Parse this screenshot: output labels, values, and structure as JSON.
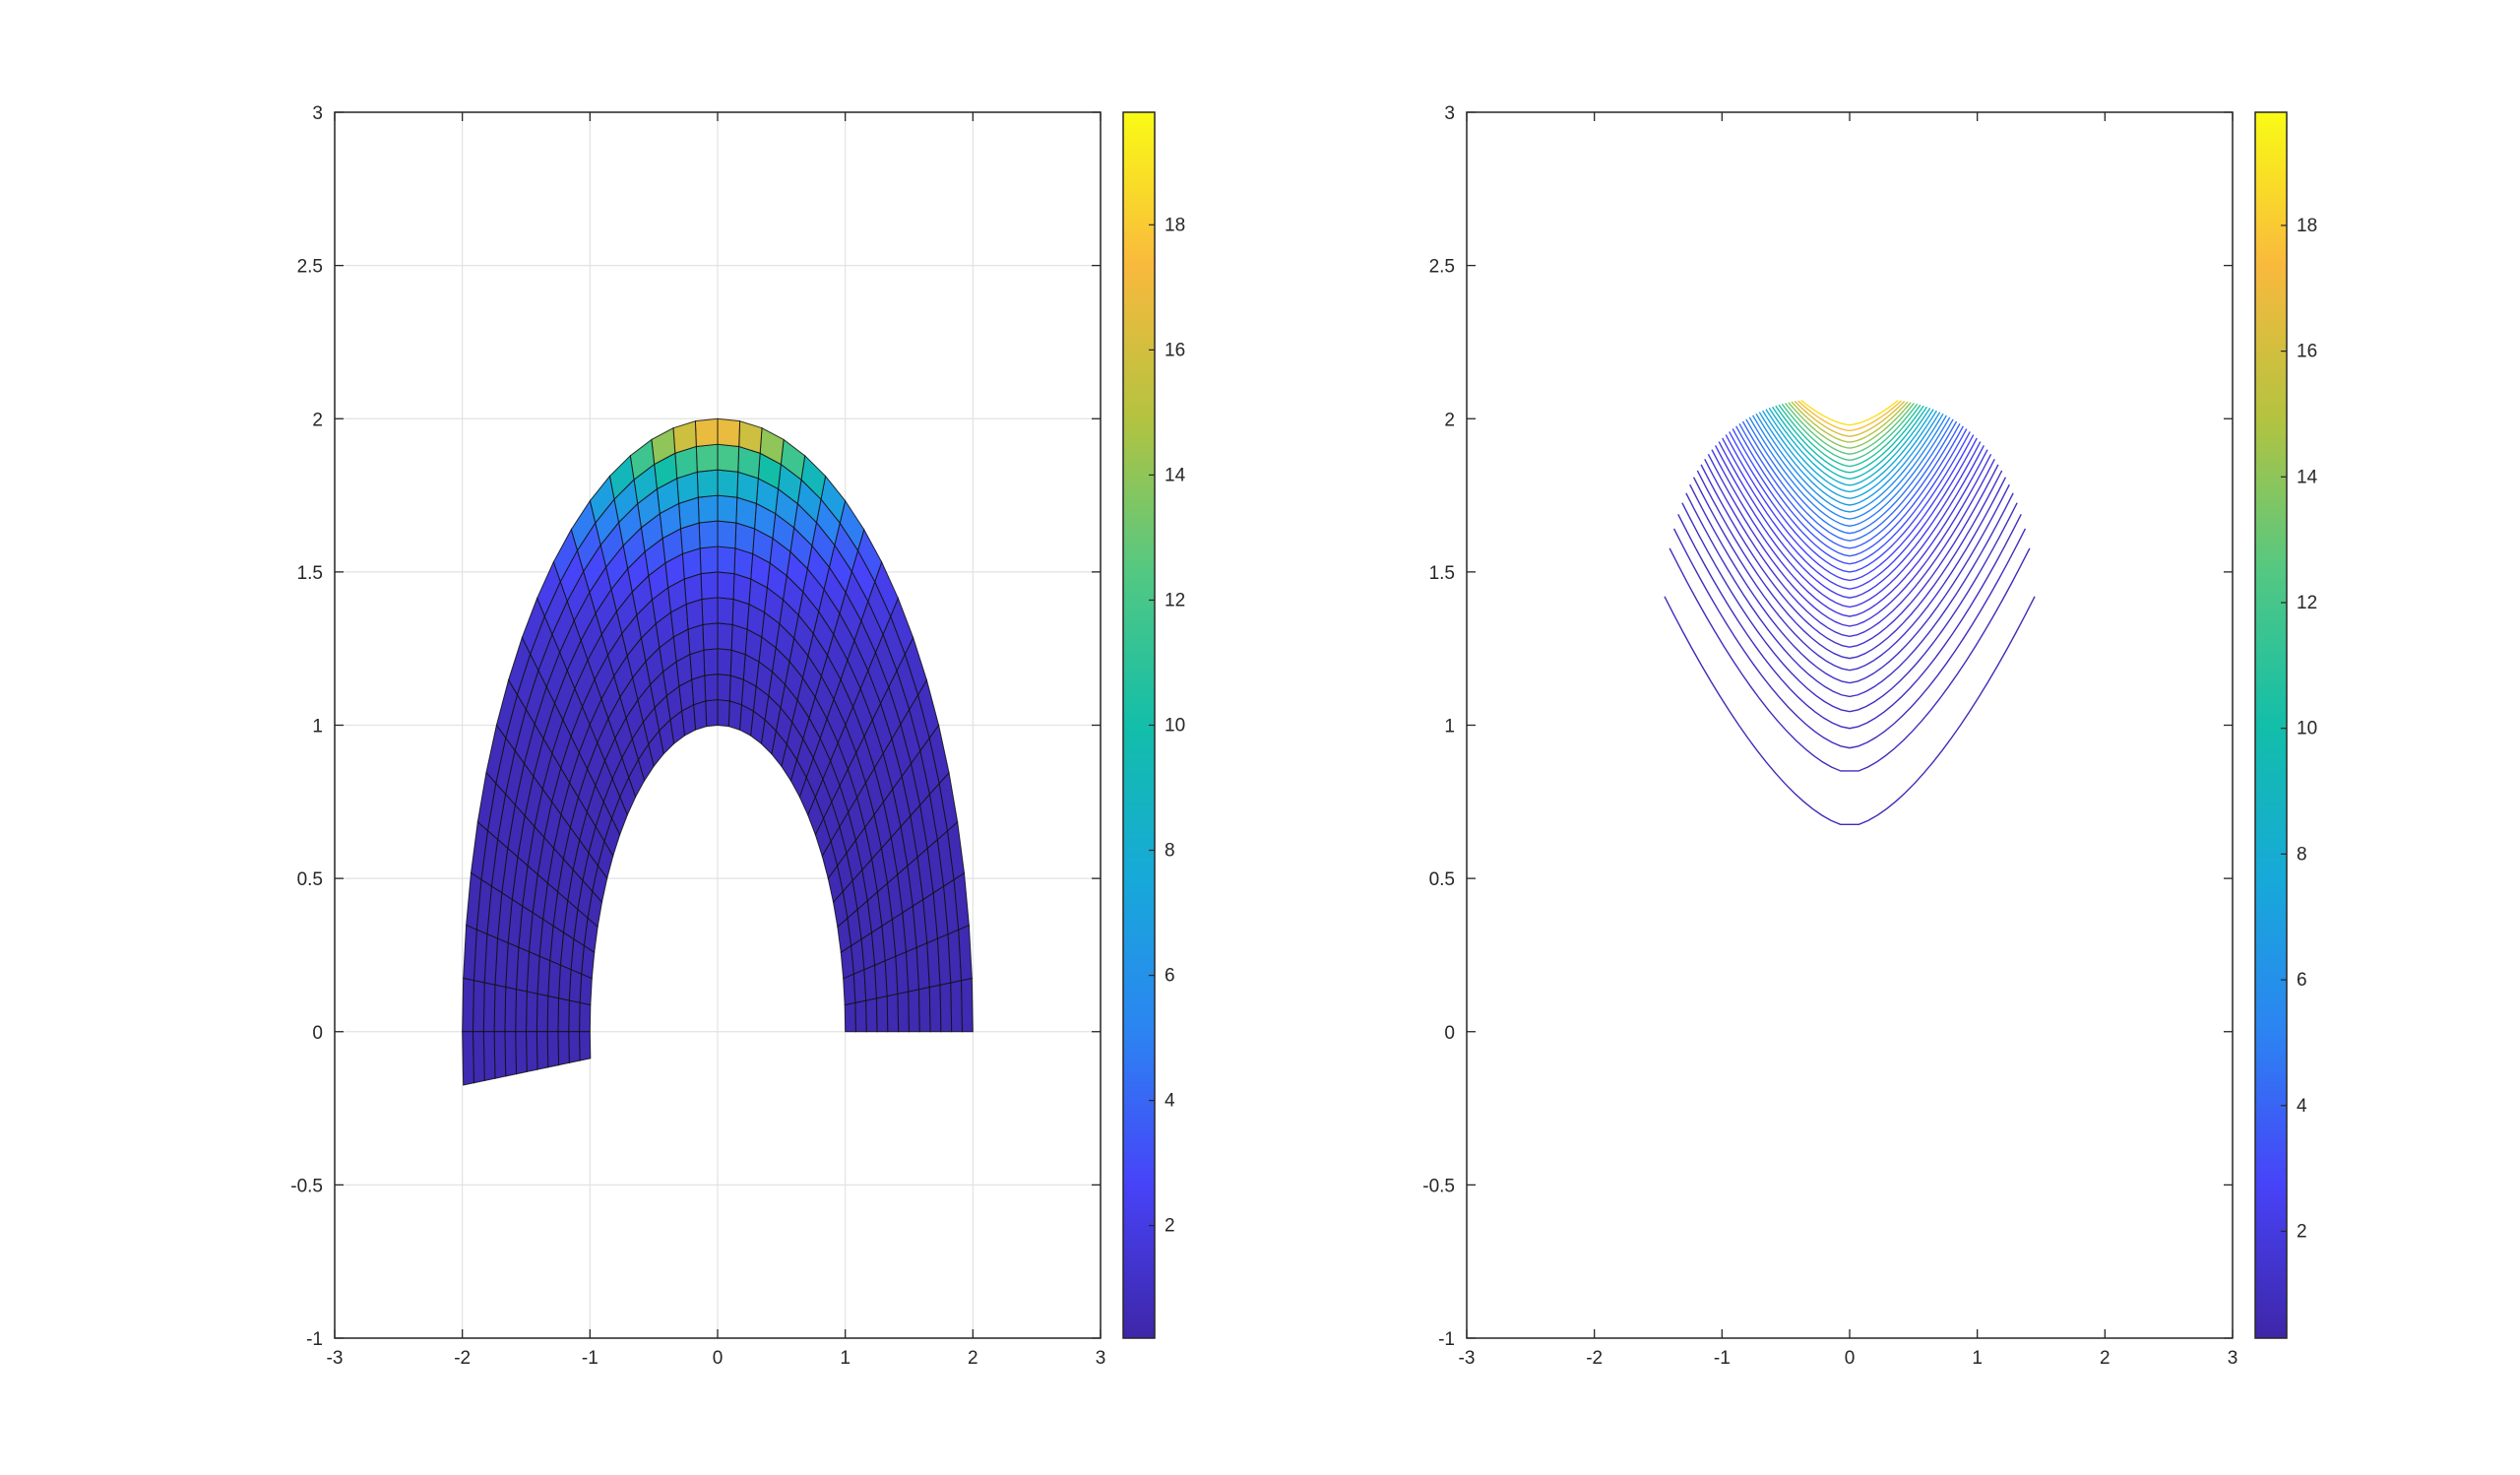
{
  "chart_data": [
    {
      "type": "heatmap",
      "plot": "surface-mesh",
      "title": "",
      "xlabel": "",
      "ylabel": "",
      "xlim": [
        -3,
        3
      ],
      "ylim": [
        -1,
        3
      ],
      "grid": true,
      "xticks": [
        "-3",
        "-2",
        "-1",
        "0",
        "1",
        "2",
        "3"
      ],
      "yticks": [
        "-1",
        "-0.5",
        "0",
        "0.5",
        "1",
        "1.5",
        "2",
        "2.5",
        "3"
      ],
      "domain": {
        "shape": "half-annulus",
        "inner_radius_x": 1,
        "outer_radius_x": 2,
        "inner_radius_y": 1,
        "outer_radius_y": 2,
        "theta_start_deg": 0,
        "theta_end_deg": 185,
        "angular_divisions": 37,
        "radial_divisions": 12
      },
      "color_range": [
        0.2,
        19.8
      ],
      "colorbar": {
        "location": "right",
        "ticks": [
          "2",
          "4",
          "6",
          "8",
          "10",
          "12",
          "14",
          "16",
          "18"
        ]
      }
    },
    {
      "type": "line",
      "plot": "contour",
      "title": "",
      "xlabel": "",
      "ylabel": "",
      "xlim": [
        -3,
        3
      ],
      "ylim": [
        -1,
        3
      ],
      "grid": false,
      "xticks": [
        "-3",
        "-2",
        "-1",
        "0",
        "1",
        "2",
        "3"
      ],
      "yticks": [
        "-1",
        "-0.5",
        "0",
        "0.5",
        "1",
        "1.5",
        "2",
        "2.5",
        "3"
      ],
      "levels": {
        "count": 40,
        "y_apex_min": 0.67,
        "y_apex_max": 1.98,
        "x_half_width_max": 1.45
      },
      "color_range": [
        0.3,
        19.8
      ],
      "colorbar": {
        "location": "right",
        "ticks": [
          "2",
          "4",
          "6",
          "8",
          "10",
          "12",
          "14",
          "16",
          "18"
        ]
      }
    }
  ],
  "colormap": [
    "#3e26a8",
    "#4743f8",
    "#2c84f2",
    "#17a9d9",
    "#13bea9",
    "#53c882",
    "#b3c340",
    "#f9b93d",
    "#f9fb15"
  ]
}
